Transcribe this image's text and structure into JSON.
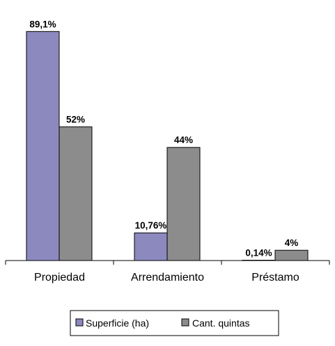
{
  "chart_data": {
    "type": "bar",
    "categories": [
      "Propiedad",
      "Arrendamiento",
      "Préstamo"
    ],
    "series": [
      {
        "name": "Superficie (ha)",
        "values": [
          89.1,
          10.76,
          0.14
        ],
        "labels": [
          "89,1%",
          "10,76%",
          "0,14%"
        ],
        "color": "#8c89bf"
      },
      {
        "name": "Cant. quintas",
        "values": [
          52,
          44,
          4
        ],
        "labels": [
          "52%",
          "44%",
          "4%"
        ],
        "color": "#8c8c8c"
      }
    ],
    "ylim": [
      0,
      100
    ],
    "grid": false,
    "legend_position": "bottom"
  }
}
